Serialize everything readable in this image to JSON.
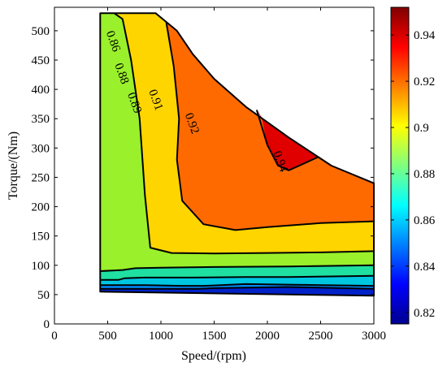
{
  "chart_data": {
    "type": "contour",
    "title": "",
    "xlabel": "Speed/(rpm)",
    "ylabel": "Torque/(Nm)",
    "xlim": [
      0,
      3000
    ],
    "ylim": [
      0,
      540
    ],
    "x_ticks": [
      0,
      500,
      1000,
      1500,
      2000,
      2500,
      3000
    ],
    "y_ticks": [
      0,
      50,
      100,
      150,
      200,
      250,
      300,
      350,
      400,
      450,
      500
    ],
    "colorbar": {
      "colormap": "jet",
      "range": [
        0.815,
        0.952
      ],
      "ticks": [
        0.82,
        0.84,
        0.86,
        0.88,
        0.9,
        0.92,
        0.94
      ]
    },
    "contour_labels": [
      {
        "text": "0.86",
        "x": 520,
        "y": 480
      },
      {
        "text": "0.88",
        "x": 600,
        "y": 425
      },
      {
        "text": "0.89",
        "x": 720,
        "y": 375
      },
      {
        "text": "0.91",
        "x": 920,
        "y": 380
      },
      {
        "text": "0.92",
        "x": 1260,
        "y": 340
      },
      {
        "text": "0.94",
        "x": 2090,
        "y": 275
      }
    ],
    "bands": [
      {
        "name": "b80",
        "color": "#0022c8",
        "polygon": [
          [
            430,
            55
          ],
          [
            3000,
            48
          ],
          [
            3000,
            60
          ],
          [
            2200,
            63
          ],
          [
            1500,
            61
          ],
          [
            1350,
            60
          ],
          [
            1250,
            60
          ],
          [
            700,
            60
          ],
          [
            430,
            60
          ]
        ]
      },
      {
        "name": "b84",
        "color": "#008cff",
        "polygon": [
          [
            430,
            60
          ],
          [
            700,
            60
          ],
          [
            1250,
            60
          ],
          [
            1350,
            60
          ],
          [
            1500,
            61
          ],
          [
            2200,
            63
          ],
          [
            3000,
            60
          ],
          [
            3000,
            65
          ],
          [
            2200,
            67
          ],
          [
            1800,
            68
          ],
          [
            1400,
            65
          ],
          [
            1200,
            65
          ],
          [
            850,
            66
          ],
          [
            600,
            66
          ],
          [
            430,
            66
          ]
        ]
      },
      {
        "name": "b86",
        "color": "#00c6e0",
        "polygon": [
          [
            430,
            66
          ],
          [
            600,
            66
          ],
          [
            850,
            66
          ],
          [
            1200,
            65
          ],
          [
            1400,
            65
          ],
          [
            1800,
            68
          ],
          [
            2200,
            67
          ],
          [
            3000,
            65
          ],
          [
            3000,
            82
          ],
          [
            2200,
            80
          ],
          [
            1800,
            80
          ],
          [
            1300,
            79
          ],
          [
            850,
            79
          ],
          [
            660,
            78
          ],
          [
            600,
            75
          ],
          [
            430,
            75
          ]
        ]
      },
      {
        "name": "b88",
        "color": "#1fe0a0",
        "polygon": [
          [
            430,
            75
          ],
          [
            600,
            75
          ],
          [
            660,
            78
          ],
          [
            850,
            79
          ],
          [
            1300,
            79
          ],
          [
            1800,
            80
          ],
          [
            2200,
            80
          ],
          [
            3000,
            82
          ],
          [
            3000,
            100
          ],
          [
            2200,
            98
          ],
          [
            1500,
            97
          ],
          [
            1000,
            96
          ],
          [
            760,
            95
          ],
          [
            640,
            92
          ],
          [
            430,
            90
          ]
        ]
      },
      {
        "name": "b89",
        "color": "#9af02a",
        "polygon": [
          [
            430,
            90
          ],
          [
            640,
            92
          ],
          [
            760,
            95
          ],
          [
            1000,
            96
          ],
          [
            1500,
            97
          ],
          [
            2200,
            98
          ],
          [
            3000,
            100
          ],
          [
            3000,
            124
          ],
          [
            2500,
            122
          ],
          [
            2000,
            121
          ],
          [
            1500,
            120
          ],
          [
            1100,
            121
          ],
          [
            900,
            130
          ],
          [
            850,
            220
          ],
          [
            800,
            350
          ],
          [
            720,
            450
          ],
          [
            640,
            520
          ],
          [
            560,
            530
          ],
          [
            430,
            530
          ]
        ]
      },
      {
        "name": "b91",
        "color": "#ffd500",
        "polygon": [
          [
            560,
            530
          ],
          [
            640,
            520
          ],
          [
            720,
            450
          ],
          [
            800,
            350
          ],
          [
            850,
            220
          ],
          [
            900,
            130
          ],
          [
            1100,
            121
          ],
          [
            1500,
            120
          ],
          [
            2000,
            121
          ],
          [
            2500,
            122
          ],
          [
            3000,
            124
          ],
          [
            3000,
            175
          ],
          [
            2500,
            172
          ],
          [
            2000,
            165
          ],
          [
            1700,
            160
          ],
          [
            1400,
            170
          ],
          [
            1200,
            210
          ],
          [
            1150,
            280
          ],
          [
            1170,
            350
          ],
          [
            1120,
            440
          ],
          [
            1050,
            515
          ],
          [
            950,
            530
          ]
        ]
      },
      {
        "name": "b92",
        "color": "#ff6a00",
        "polygon": [
          [
            1050,
            515
          ],
          [
            1120,
            440
          ],
          [
            1170,
            350
          ],
          [
            1150,
            280
          ],
          [
            1200,
            210
          ],
          [
            1400,
            170
          ],
          [
            1700,
            160
          ],
          [
            2000,
            165
          ],
          [
            2500,
            172
          ],
          [
            3000,
            175
          ],
          [
            3000,
            240
          ],
          [
            2600,
            270
          ],
          [
            2200,
            318
          ],
          [
            1800,
            370
          ],
          [
            1500,
            418
          ],
          [
            1300,
            460
          ],
          [
            1150,
            500
          ]
        ]
      },
      {
        "name": "b94",
        "color": "#e00000",
        "polygon": [
          [
            1900,
            365
          ],
          [
            1950,
            350
          ],
          [
            2000,
            305
          ],
          [
            2100,
            270
          ],
          [
            2200,
            262
          ],
          [
            2300,
            270
          ],
          [
            2480,
            285
          ],
          [
            2200,
            318
          ],
          [
            1950,
            350
          ]
        ]
      }
    ],
    "outline": [
      [
        430,
        530
      ],
      [
        950,
        530
      ],
      [
        1150,
        500
      ],
      [
        1300,
        460
      ],
      [
        1500,
        418
      ],
      [
        1800,
        370
      ],
      [
        2200,
        318
      ],
      [
        2600,
        270
      ],
      [
        3000,
        240
      ],
      [
        3000,
        48
      ],
      [
        430,
        55
      ]
    ],
    "contour_lines": [
      [
        [
          430,
          60
        ],
        [
          700,
          60
        ],
        [
          1250,
          60
        ],
        [
          1350,
          60
        ],
        [
          1500,
          61
        ],
        [
          2200,
          63
        ],
        [
          3000,
          60
        ]
      ],
      [
        [
          430,
          66
        ],
        [
          600,
          66
        ],
        [
          850,
          66
        ],
        [
          1200,
          65
        ],
        [
          1400,
          65
        ],
        [
          1800,
          68
        ],
        [
          2200,
          67
        ],
        [
          3000,
          65
        ]
      ],
      [
        [
          430,
          75
        ],
        [
          600,
          75
        ],
        [
          660,
          78
        ],
        [
          850,
          79
        ],
        [
          1300,
          79
        ],
        [
          1800,
          80
        ],
        [
          2200,
          80
        ],
        [
          3000,
          82
        ]
      ],
      [
        [
          430,
          90
        ],
        [
          640,
          92
        ],
        [
          760,
          95
        ],
        [
          1000,
          96
        ],
        [
          1500,
          97
        ],
        [
          2200,
          98
        ],
        [
          3000,
          100
        ]
      ],
      [
        [
          560,
          530
        ],
        [
          640,
          520
        ],
        [
          720,
          450
        ],
        [
          800,
          350
        ],
        [
          850,
          220
        ],
        [
          900,
          130
        ],
        [
          1100,
          121
        ],
        [
          1500,
          120
        ],
        [
          2000,
          121
        ],
        [
          2500,
          122
        ],
        [
          3000,
          124
        ]
      ],
      [
        [
          1050,
          515
        ],
        [
          1120,
          440
        ],
        [
          1170,
          350
        ],
        [
          1150,
          280
        ],
        [
          1200,
          210
        ],
        [
          1400,
          170
        ],
        [
          1700,
          160
        ],
        [
          2000,
          165
        ],
        [
          2500,
          172
        ],
        [
          3000,
          175
        ]
      ],
      [
        [
          1900,
          365
        ],
        [
          2000,
          305
        ],
        [
          2100,
          270
        ],
        [
          2200,
          262
        ],
        [
          2300,
          270
        ],
        [
          2480,
          285
        ]
      ]
    ]
  }
}
